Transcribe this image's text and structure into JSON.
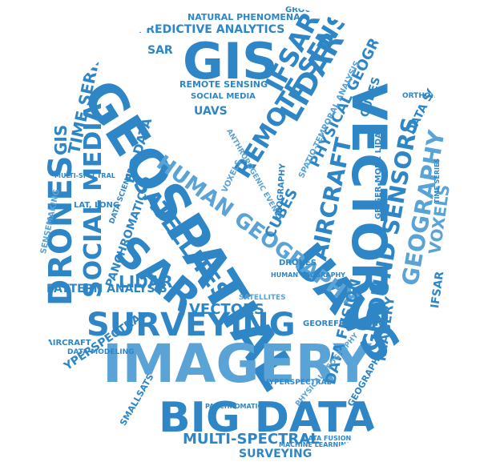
{
  "colors": {
    "word": "#2f86c6",
    "word_light": "#5aa3d6",
    "background": "#ffffff"
  },
  "words": [
    {
      "text": "GIS"
    },
    {
      "text": "GEOSPATIAL"
    },
    {
      "text": "VECTORS"
    },
    {
      "text": "IMAGERY"
    },
    {
      "text": "BIG DATA"
    },
    {
      "text": "SURVEYING"
    },
    {
      "text": "UAVS"
    },
    {
      "text": "SAR"
    },
    {
      "text": "DRONES"
    },
    {
      "text": "SOCIAL MEDIA"
    },
    {
      "text": "HUMAN GEOGRAPHY"
    },
    {
      "text": "SATELLITES"
    },
    {
      "text": "REMOTE SENSING"
    },
    {
      "text": "LIDAR"
    },
    {
      "text": "IFSAR"
    },
    {
      "text": "AIRCRAFT"
    },
    {
      "text": "GROUND SENSORS"
    },
    {
      "text": "GEOGRAPHY"
    },
    {
      "text": "PHYSICAL GEOGRAPHY"
    },
    {
      "text": "TIME SERIES"
    },
    {
      "text": "PREDICTIVE ANALYTICS"
    },
    {
      "text": "NATURAL PHENOMENA"
    },
    {
      "text": "MULTI-SPECTRAL"
    },
    {
      "text": "DATA FUSION"
    },
    {
      "text": "VOXELS"
    },
    {
      "text": "PANCHROMATIC"
    },
    {
      "text": "PATTERN ANALYSIS"
    },
    {
      "text": "CUBES"
    },
    {
      "text": "DATA SCIENCE"
    },
    {
      "text": "ORTHORECTIFICATION"
    },
    {
      "text": "HYPERSPECTRAL"
    },
    {
      "text": "SENSEMAKING"
    },
    {
      "text": "LAT, LONG"
    },
    {
      "text": "GEIGER-MODE LIDAR"
    },
    {
      "text": "GEOREFERENCING"
    },
    {
      "text": "IMAGERY"
    },
    {
      "text": "SMALLSATS"
    },
    {
      "text": "DATA MODELING"
    },
    {
      "text": "SPATIO-TEMPORAL ANALYSIS"
    },
    {
      "text": "MACHINE LEARNING"
    },
    {
      "text": "REMOTE SENSING"
    },
    {
      "text": "SOCIAL MEDIA"
    },
    {
      "text": "UAVS"
    },
    {
      "text": "GROUND SENSORS"
    },
    {
      "text": "VECTORS"
    },
    {
      "text": "SATELLITES"
    },
    {
      "text": "LIDAR"
    },
    {
      "text": "CUBES"
    },
    {
      "text": "SAR"
    },
    {
      "text": "DRONES"
    },
    {
      "text": "GIS"
    },
    {
      "text": "IFSAR"
    },
    {
      "text": "VOXELS"
    },
    {
      "text": "BIG DATA"
    },
    {
      "text": "SURVEYING"
    },
    {
      "text": "AIRCRAFT"
    },
    {
      "text": "HUMAN GEOGRAPHY"
    },
    {
      "text": "MULTI-SPECTRAL"
    },
    {
      "text": "DATA FUSION"
    },
    {
      "text": "ANTHROPOGENIC EVENTS"
    },
    {
      "text": "GEOGRAPHY"
    },
    {
      "text": "TIME SERIES"
    },
    {
      "text": "PANCHROMATIC"
    },
    {
      "text": "HYPERSPECTRAL"
    },
    {
      "text": "DATA SCIENCE"
    },
    {
      "text": "GEOGRAPHY"
    },
    {
      "text": "PHYSICAL GEOGRAPHY"
    },
    {
      "text": "REMOTE SENSING"
    }
  ]
}
